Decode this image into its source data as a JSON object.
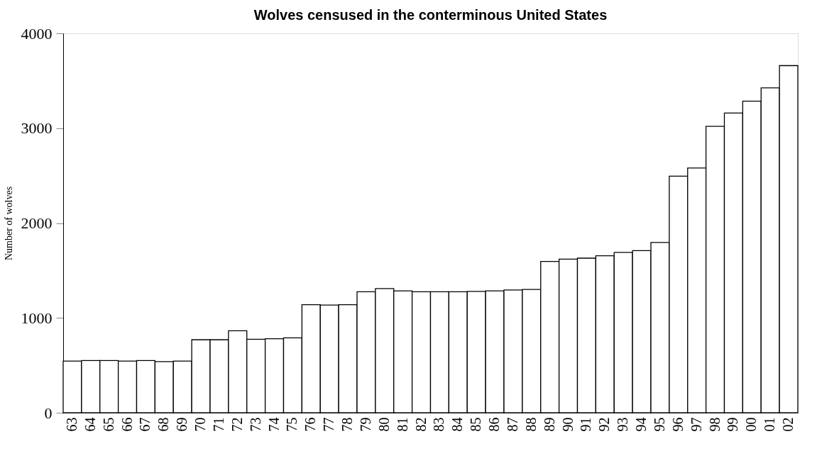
{
  "chart_data": {
    "type": "bar",
    "title": "Wolves censused in the conterminous United States",
    "ylabel": "Number of wolves",
    "categories": [
      "63",
      "64",
      "65",
      "66",
      "67",
      "68",
      "69",
      "70",
      "71",
      "72",
      "73",
      "74",
      "75",
      "76",
      "77",
      "78",
      "79",
      "80",
      "81",
      "82",
      "83",
      "84",
      "85",
      "86",
      "87",
      "88",
      "89",
      "90",
      "91",
      "92",
      "93",
      "94",
      "95",
      "96",
      "97",
      "98",
      "99",
      "00",
      "01",
      "02"
    ],
    "values": [
      545,
      550,
      550,
      545,
      550,
      540,
      545,
      770,
      770,
      865,
      775,
      780,
      790,
      1140,
      1135,
      1140,
      1275,
      1310,
      1285,
      1275,
      1275,
      1275,
      1280,
      1285,
      1295,
      1300,
      1595,
      1620,
      1630,
      1655,
      1690,
      1710,
      1795,
      2495,
      2580,
      3020,
      3160,
      3285,
      3425,
      3660
    ],
    "color": "#ffffff",
    "ylim": [
      0,
      4000
    ],
    "yticks": [
      0,
      1000,
      2000,
      3000,
      4000
    ],
    "grid": false
  }
}
